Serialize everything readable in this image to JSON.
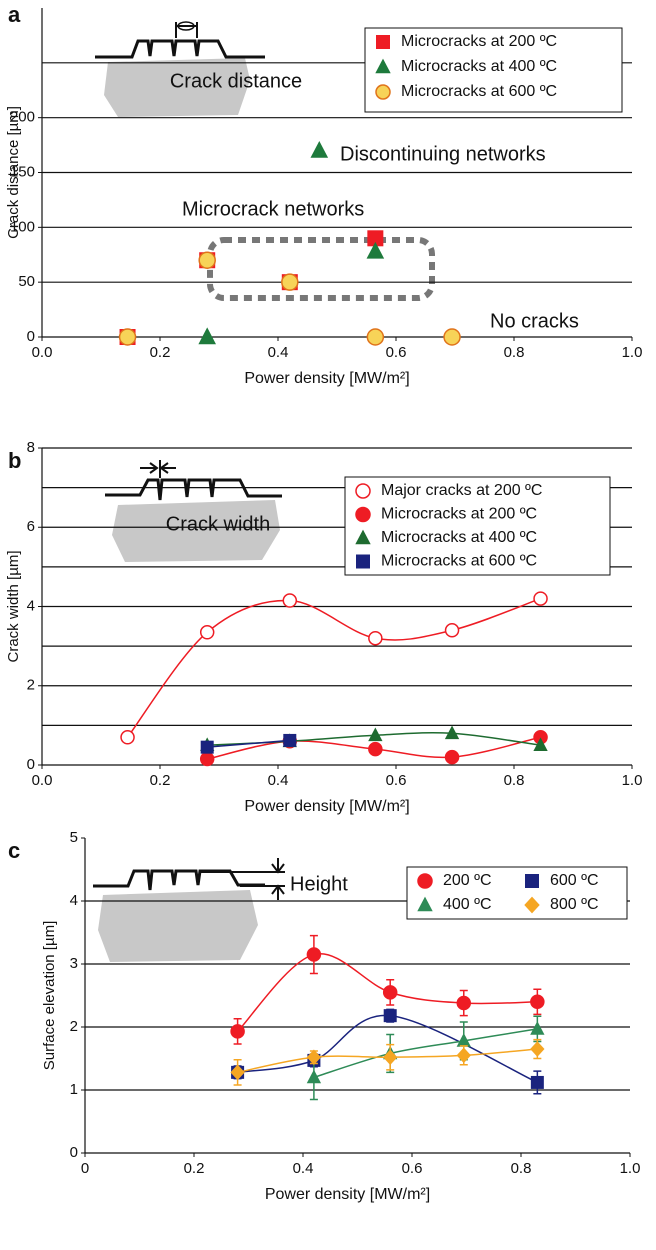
{
  "chart_data": [
    {
      "type": "scatter",
      "panel": "a",
      "ylabel": "Crack distance [µm]",
      "xlabel": "Power density [MW/m²]",
      "xlim": [
        0,
        1
      ],
      "xticks": [
        {
          "value": 0,
          "label": "0.0"
        },
        0.2,
        0.4,
        0.6,
        0.8,
        {
          "value": 1,
          "label": "1.0"
        }
      ],
      "ylim": [
        0,
        300
      ],
      "yticks": [
        0,
        50,
        100,
        150,
        200
      ],
      "ygrid": [
        50,
        100,
        150,
        200,
        250
      ],
      "legend": "upper right",
      "lines": false,
      "annotations": [
        "Crack distance",
        "Discontinuing networks",
        "Microcrack networks",
        "No cracks"
      ],
      "series": [
        {
          "name": "Microcracks at 200 ºC",
          "marker": "square",
          "color": "#ee1c24",
          "x": [
            0.145,
            0.28,
            0.42,
            0.565
          ],
          "values": [
            0,
            70,
            50,
            90
          ]
        },
        {
          "name": "Microcracks at 400 ºC",
          "marker": "triangle",
          "color": "#1e7a3c",
          "x": [
            0.28,
            0.47,
            0.565
          ],
          "values": [
            0,
            170,
            78
          ]
        },
        {
          "name": "Microcracks at 600 ºC",
          "marker": "circle",
          "color": "#f7d358",
          "edgecolor": "#e0731a",
          "x": [
            0.145,
            0.28,
            0.42,
            0.565,
            0.695
          ],
          "values": [
            0,
            70,
            50,
            0,
            0
          ]
        }
      ]
    },
    {
      "type": "line",
      "panel": "b",
      "ylabel": "Crack width [µm]",
      "xlabel": "Power density [MW/m²]",
      "xlim": [
        0,
        1
      ],
      "xticks": [
        {
          "value": 0,
          "label": "0.0"
        },
        0.2,
        0.4,
        0.6,
        0.8,
        {
          "value": 1,
          "label": "1.0"
        }
      ],
      "ylim": [
        0,
        8
      ],
      "yticks": [
        0,
        2,
        4,
        6,
        8
      ],
      "ygrid": [
        1,
        2,
        3,
        4,
        5,
        6,
        7,
        8
      ],
      "legend": "upper right",
      "lines": true,
      "annotations": [
        "Crack width"
      ],
      "series": [
        {
          "name": "Major cracks at 200 ºC",
          "marker": "open-circle",
          "color": "#ee1c24",
          "x": [
            0.145,
            0.28,
            0.42,
            0.565,
            0.695,
            0.845
          ],
          "values": [
            0.7,
            3.35,
            4.15,
            3.2,
            3.4,
            4.2
          ]
        },
        {
          "name": "Microcracks at 200 ºC",
          "marker": "circle",
          "color": "#ee1c24",
          "x": [
            0.28,
            0.42,
            0.565,
            0.695,
            0.845
          ],
          "values": [
            0.15,
            0.6,
            0.4,
            0.2,
            0.7
          ]
        },
        {
          "name": "Microcracks at 400 ºC",
          "marker": "triangle",
          "color": "#1e6b30",
          "x": [
            0.28,
            0.42,
            0.565,
            0.695,
            0.845
          ],
          "values": [
            0.5,
            0.6,
            0.75,
            0.8,
            0.5
          ]
        },
        {
          "name": "Microcracks at 600 ºC",
          "marker": "square",
          "color": "#1a237e",
          "x": [
            0.28,
            0.42
          ],
          "values": [
            0.45,
            0.62
          ]
        }
      ]
    },
    {
      "type": "line",
      "panel": "c",
      "ylabel": "Surface elevation [µm]",
      "xlabel": "Power density [MW/m²]",
      "xlim": [
        0,
        1
      ],
      "xticks": [
        0,
        0.2,
        0.4,
        0.6,
        0.8,
        {
          "value": 1,
          "label": "1.0"
        }
      ],
      "ylim": [
        0,
        5
      ],
      "yticks": [
        0,
        1,
        2,
        3,
        4,
        5
      ],
      "ygrid": [
        1,
        2,
        3,
        4
      ],
      "legend": "upper right",
      "lines": true,
      "annotations": [
        "Height"
      ],
      "series": [
        {
          "name": "200 ºC",
          "marker": "circle",
          "color": "#ee1c24",
          "x": [
            0.28,
            0.42,
            0.56,
            0.695,
            0.83
          ],
          "values": [
            1.93,
            3.15,
            2.55,
            2.38,
            2.4
          ],
          "errors": [
            0.2,
            0.3,
            0.2,
            0.2,
            0.2
          ]
        },
        {
          "name": "600 ºC",
          "marker": "square",
          "color": "#1a237e",
          "x": [
            0.28,
            0.42,
            0.56,
            0.83
          ],
          "values": [
            1.28,
            1.47,
            2.18,
            1.12
          ],
          "errors": [
            0.1,
            0.1,
            0.1,
            0.18
          ]
        },
        {
          "name": "400 ºC",
          "marker": "triangle",
          "color": "#2e8b57",
          "x": [
            0.42,
            0.56,
            0.695,
            0.83
          ],
          "values": [
            1.2,
            1.58,
            1.78,
            1.97
          ],
          "errors": [
            0.35,
            0.3,
            0.3,
            0.2
          ]
        },
        {
          "name": "800 ºC",
          "marker": "diamond",
          "color": "#f5a623",
          "x": [
            0.28,
            0.42,
            0.56,
            0.695,
            0.83
          ],
          "values": [
            1.28,
            1.52,
            1.52,
            1.55,
            1.65
          ],
          "errors": [
            0.2,
            0.1,
            0.2,
            0.15,
            0.15
          ]
        }
      ]
    }
  ]
}
